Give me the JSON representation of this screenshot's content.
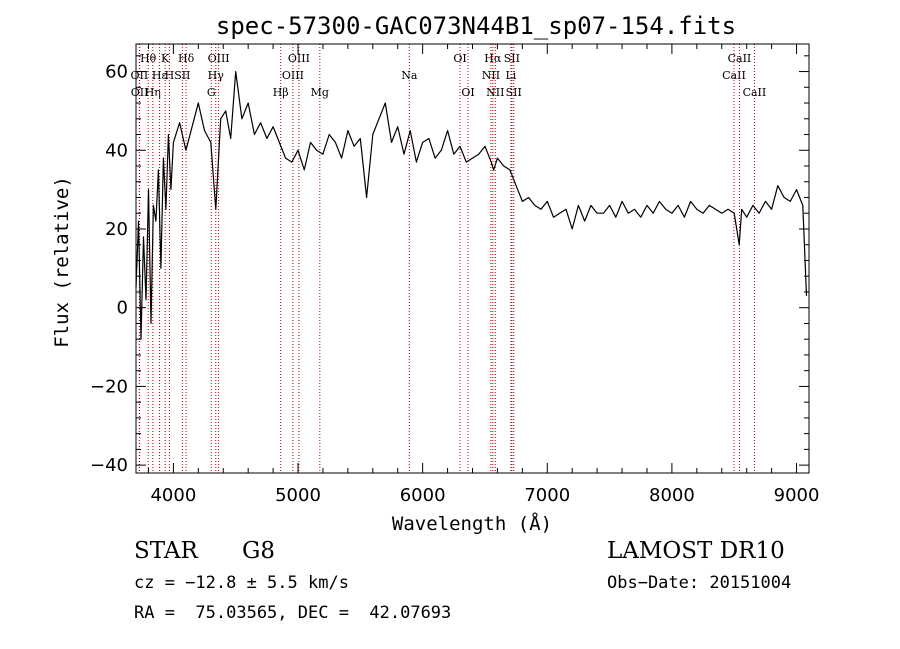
{
  "chart_data": {
    "type": "line",
    "title": "spec-57300-GAC073N44B1_sp07-154.fits",
    "xlabel": "Wavelength (Å)",
    "ylabel": "Flux (relative)",
    "xlim": [
      3700,
      9100
    ],
    "ylim": [
      -42,
      67
    ],
    "x_ticks": [
      4000,
      5000,
      6000,
      7000,
      8000,
      9000
    ],
    "y_ticks": [
      -40,
      -20,
      0,
      20,
      40,
      60
    ],
    "grid": false,
    "series": [
      {
        "x": [
          3700,
          3720,
          3740,
          3760,
          3780,
          3800,
          3820,
          3840,
          3860,
          3880,
          3900,
          3920,
          3940,
          3960,
          3980,
          4000,
          4050,
          4100,
          4150,
          4200,
          4250,
          4300,
          4340,
          4380,
          4420,
          4460,
          4500,
          4550,
          4600,
          4650,
          4700,
          4750,
          4800,
          4850,
          4900,
          4950,
          5000,
          5050,
          5100,
          5150,
          5200,
          5250,
          5300,
          5350,
          5400,
          5450,
          5500,
          5550,
          5600,
          5650,
          5700,
          5750,
          5800,
          5850,
          5900,
          5950,
          6000,
          6050,
          6100,
          6150,
          6200,
          6250,
          6300,
          6350,
          6400,
          6450,
          6500,
          6550,
          6570,
          6600,
          6650,
          6700,
          6750,
          6800,
          6850,
          6900,
          6950,
          7000,
          7050,
          7100,
          7150,
          7200,
          7250,
          7300,
          7350,
          7400,
          7450,
          7500,
          7550,
          7600,
          7650,
          7700,
          7750,
          7800,
          7850,
          7900,
          7950,
          8000,
          8050,
          8100,
          8150,
          8200,
          8250,
          8300,
          8350,
          8400,
          8450,
          8500,
          8540,
          8560,
          8600,
          8650,
          8700,
          8750,
          8800,
          8850,
          8900,
          8950,
          9000,
          9050,
          9080
        ],
        "y": [
          5,
          22,
          -8,
          18,
          2,
          30,
          -4,
          26,
          22,
          35,
          10,
          38,
          25,
          44,
          30,
          42,
          47,
          40,
          46,
          52,
          45,
          42,
          25,
          48,
          50,
          43,
          60,
          48,
          52,
          44,
          47,
          43,
          46,
          42,
          38,
          37,
          40,
          35,
          42,
          40,
          39,
          44,
          42,
          38,
          45,
          41,
          43,
          28,
          44,
          48,
          52,
          42,
          46,
          39,
          45,
          37,
          42,
          43,
          38,
          40,
          45,
          39,
          41,
          37,
          38,
          39,
          41,
          37,
          35,
          38,
          36,
          35,
          31,
          27,
          28,
          26,
          25,
          27,
          23,
          24,
          25,
          20,
          26,
          22,
          26,
          24,
          24,
          26,
          23,
          27,
          24,
          25,
          23,
          26,
          24,
          27,
          25,
          24,
          26,
          23,
          27,
          25,
          24,
          26,
          25,
          24,
          25,
          24,
          16,
          25,
          23,
          26,
          24,
          27,
          25,
          31,
          28,
          27,
          30,
          26,
          3
        ]
      }
    ],
    "line_markers": [
      {
        "label": "Hθ",
        "x": 3798,
        "row": 1
      },
      {
        "label": "OII",
        "x": 3727,
        "row": 2
      },
      {
        "label": "OII",
        "x": 3729,
        "row": 3
      },
      {
        "label": "Hη",
        "x": 3835,
        "row": 3
      },
      {
        "label": "K",
        "x": 3934,
        "row": 1
      },
      {
        "label": "Hε",
        "x": 3889,
        "row": 2
      },
      {
        "label": "H",
        "x": 3968,
        "row": 2
      },
      {
        "label": "Hδ",
        "x": 4102,
        "row": 1
      },
      {
        "label": "SII",
        "x": 4072,
        "row": 2
      },
      {
        "label": "Hγ",
        "x": 4340,
        "row": 2
      },
      {
        "label": "G",
        "x": 4304,
        "row": 3
      },
      {
        "label": "OIII",
        "x": 4363,
        "row": 1
      },
      {
        "label": "Hβ",
        "x": 4861,
        "row": 3
      },
      {
        "label": "OIII",
        "x": 4959,
        "row": 2
      },
      {
        "label": "OIII",
        "x": 5007,
        "row": 1
      },
      {
        "label": "Mg",
        "x": 5175,
        "row": 3
      },
      {
        "label": "Na",
        "x": 5893,
        "row": 2
      },
      {
        "label": "OI",
        "x": 6300,
        "row": 1
      },
      {
        "label": "OI",
        "x": 6364,
        "row": 3
      },
      {
        "label": "Hα",
        "x": 6563,
        "row": 1
      },
      {
        "label": "NII",
        "x": 6548,
        "row": 2
      },
      {
        "label": "NII",
        "x": 6583,
        "row": 3
      },
      {
        "label": "SII",
        "x": 6716,
        "row": 1
      },
      {
        "label": "Li",
        "x": 6708,
        "row": 2
      },
      {
        "label": "SII",
        "x": 6731,
        "row": 3
      },
      {
        "label": "CaII",
        "x": 8498,
        "row": 2
      },
      {
        "label": "CaII",
        "x": 8542,
        "row": 1
      },
      {
        "label": "CaII",
        "x": 8662,
        "row": 3
      }
    ]
  },
  "footer": {
    "class_label": "STAR",
    "subclass_label": "G8",
    "survey": "LAMOST DR10",
    "cz": "cz = −12.8 ± 5.5 km/s",
    "obs_date": "Obs−Date: 20151004",
    "coords": "RA =  75.03565, DEC =  42.07693"
  }
}
